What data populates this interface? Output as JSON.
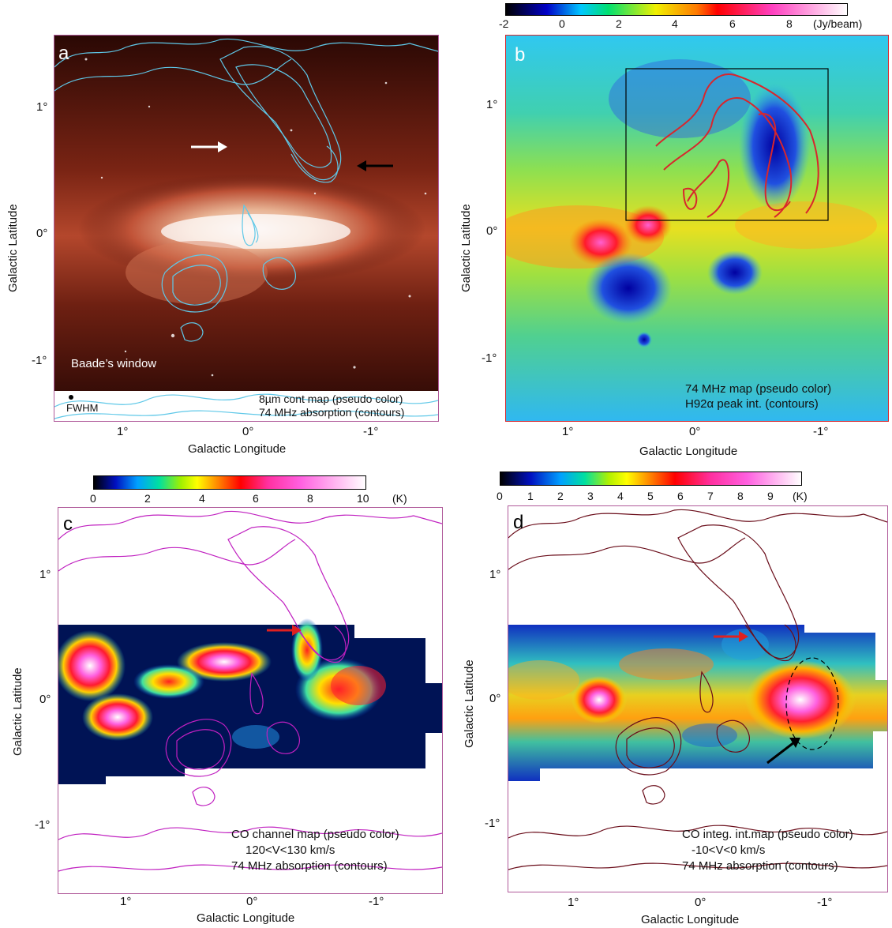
{
  "panels": [
    {
      "letter": "a",
      "xlabel": "Galactic Longitude",
      "ylabel": "Galactic Latitude",
      "xticks": [
        "1°",
        "0°",
        "-1°"
      ],
      "yticks": [
        "1°",
        "0°",
        "-1°"
      ],
      "annotation": "Baade’s window",
      "beam_label": "FWHM",
      "caption": [
        "8µm cont map (pseudo color)",
        "74 MHz absorption (contours)"
      ]
    },
    {
      "letter": "b",
      "xlabel": "Galactic Longitude",
      "ylabel": "Galactic Latitude",
      "xticks": [
        "1°",
        "0°",
        "-1°"
      ],
      "yticks": [
        "1°",
        "0°",
        "-1°"
      ],
      "colorbar": {
        "ticks": [
          "-2",
          "0",
          "2",
          "4",
          "6",
          "8"
        ],
        "unit": "(Jy/beam)"
      },
      "caption": [
        "74 MHz map (pseudo color)",
        "H92α peak int. (contours)"
      ]
    },
    {
      "letter": "c",
      "xlabel": "Galactic Longitude",
      "ylabel": "Galactic Latitude",
      "xticks": [
        "1°",
        "0°",
        "-1°"
      ],
      "yticks": [
        "1°",
        "0°",
        "-1°"
      ],
      "colorbar": {
        "ticks": [
          "0",
          "2",
          "4",
          "6",
          "8",
          "10"
        ],
        "unit": "(K)"
      },
      "caption": [
        "CO channel map (pseudo color)",
        "120<V<130 km/s",
        "74 MHz absorption (contours)"
      ]
    },
    {
      "letter": "d",
      "xlabel": "Galactic Longitude",
      "ylabel": "Galactic Latitude",
      "xticks": [
        "1°",
        "0°",
        "-1°"
      ],
      "yticks": [
        "1°",
        "0°",
        "-1°"
      ],
      "colorbar": {
        "ticks": [
          "0",
          "1",
          "2",
          "3",
          "4",
          "5",
          "6",
          "7",
          "8",
          "9"
        ],
        "unit": "(K)"
      },
      "caption": [
        "CO integ. int.map (pseudo color)",
        "-10<V<0 km/s",
        "74 MHz absorption (contours)"
      ]
    }
  ],
  "colors": {
    "contour_a": "#5fc8e8",
    "contour_b": "#d8262c",
    "contour_c": "#c020c0",
    "contour_d": "#6a0d1a",
    "frame": "#b05a9a"
  }
}
